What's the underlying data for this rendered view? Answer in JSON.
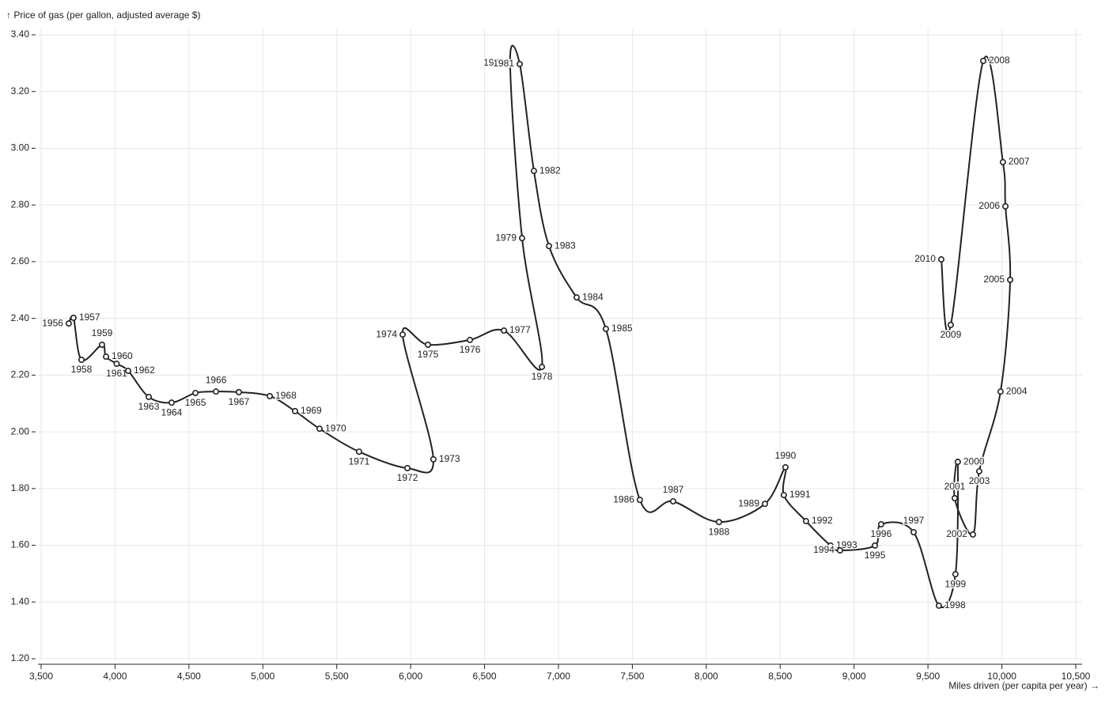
{
  "chart_data": {
    "type": "line",
    "y_label": "↑ Price of gas (per gallon, adjusted average $)",
    "x_label": "Miles driven (per capita per year) →",
    "point_labels": [
      "1956",
      "1957",
      "1958",
      "1959",
      "1960",
      "1961",
      "1962",
      "1963",
      "1964",
      "1965",
      "1966",
      "1967",
      "1968",
      "1969",
      "1970",
      "1971",
      "1972",
      "1973",
      "1974",
      "1975",
      "1976",
      "1977",
      "1978",
      "1979",
      "1980",
      "1981",
      "1982",
      "1983",
      "1984",
      "1985",
      "1986",
      "1987",
      "1988",
      "1989",
      "1990",
      "1991",
      "1992",
      "1993",
      "1994",
      "1995",
      "1996",
      "1997",
      "1998",
      "1999",
      "2000",
      "2001",
      "2002",
      "2003",
      "2004",
      "2005",
      "2006",
      "2007",
      "2008",
      "2009",
      "2010"
    ],
    "x": [
      3687,
      3719,
      3773,
      3912,
      3939,
      4011,
      4089,
      4228,
      4383,
      4544,
      4683,
      4838,
      5047,
      5218,
      5384,
      5651,
      5978,
      6154,
      5946,
      6117,
      6401,
      6631,
      6888,
      6754,
      6673,
      6738,
      6834,
      6936,
      7123,
      7321,
      7551,
      7776,
      8086,
      8397,
      8536,
      8525,
      8675,
      8841,
      8905,
      9141,
      9183,
      9403,
      9574,
      9686,
      9702,
      9681,
      9804,
      9847,
      9991,
      10056,
      10024,
      10007,
      9874,
      9654,
      9590
    ],
    "values": [
      2.382,
      2.402,
      2.254,
      2.307,
      2.265,
      2.24,
      2.215,
      2.123,
      2.103,
      2.137,
      2.142,
      2.14,
      2.126,
      2.073,
      2.011,
      1.93,
      1.872,
      1.903,
      2.343,
      2.307,
      2.324,
      2.357,
      2.229,
      2.683,
      3.3,
      3.297,
      2.92,
      2.655,
      2.474,
      2.363,
      1.76,
      1.755,
      1.682,
      1.746,
      1.875,
      1.777,
      1.685,
      1.599,
      1.582,
      1.599,
      1.674,
      1.646,
      1.387,
      1.498,
      1.894,
      1.766,
      1.638,
      1.861,
      2.142,
      2.536,
      2.795,
      2.951,
      3.308,
      2.377,
      2.608
    ],
    "color": "#222222",
    "xlim": [
      3500,
      10500
    ],
    "xticks": [
      {
        "value": 3500,
        "label": "3,500"
      },
      {
        "value": 4000,
        "label": "4,000"
      },
      {
        "value": 4500,
        "label": "4,500"
      },
      {
        "value": 5000,
        "label": "5,000"
      },
      {
        "value": 5500,
        "label": "5,500"
      },
      {
        "value": 6000,
        "label": "6,000"
      },
      {
        "value": 6500,
        "label": "6,500"
      },
      {
        "value": 7000,
        "label": "7,000"
      },
      {
        "value": 7500,
        "label": "7,500"
      },
      {
        "value": 8000,
        "label": "8,000"
      },
      {
        "value": 8500,
        "label": "8,500"
      },
      {
        "value": 9000,
        "label": "9,000"
      },
      {
        "value": 9500,
        "label": "9,500"
      },
      {
        "value": 10000,
        "label": "10,000"
      },
      {
        "value": 10500,
        "label": "10,500"
      }
    ],
    "ylim": [
      1.2,
      3.4
    ],
    "yticks": [
      {
        "value": 1.2,
        "label": "1.20"
      },
      {
        "value": 1.4,
        "label": "1.40"
      },
      {
        "value": 1.6,
        "label": "1.60"
      },
      {
        "value": 1.8,
        "label": "1.80"
      },
      {
        "value": 2.0,
        "label": "2.00"
      },
      {
        "value": 2.2,
        "label": "2.20"
      },
      {
        "value": 2.4,
        "label": "2.40"
      },
      {
        "value": 2.6,
        "label": "2.60"
      },
      {
        "value": 2.8,
        "label": "2.80"
      },
      {
        "value": 3.0,
        "label": "3.00"
      },
      {
        "value": 3.2,
        "label": "3.20"
      },
      {
        "value": 3.4,
        "label": "3.40"
      }
    ],
    "grid": true
  }
}
